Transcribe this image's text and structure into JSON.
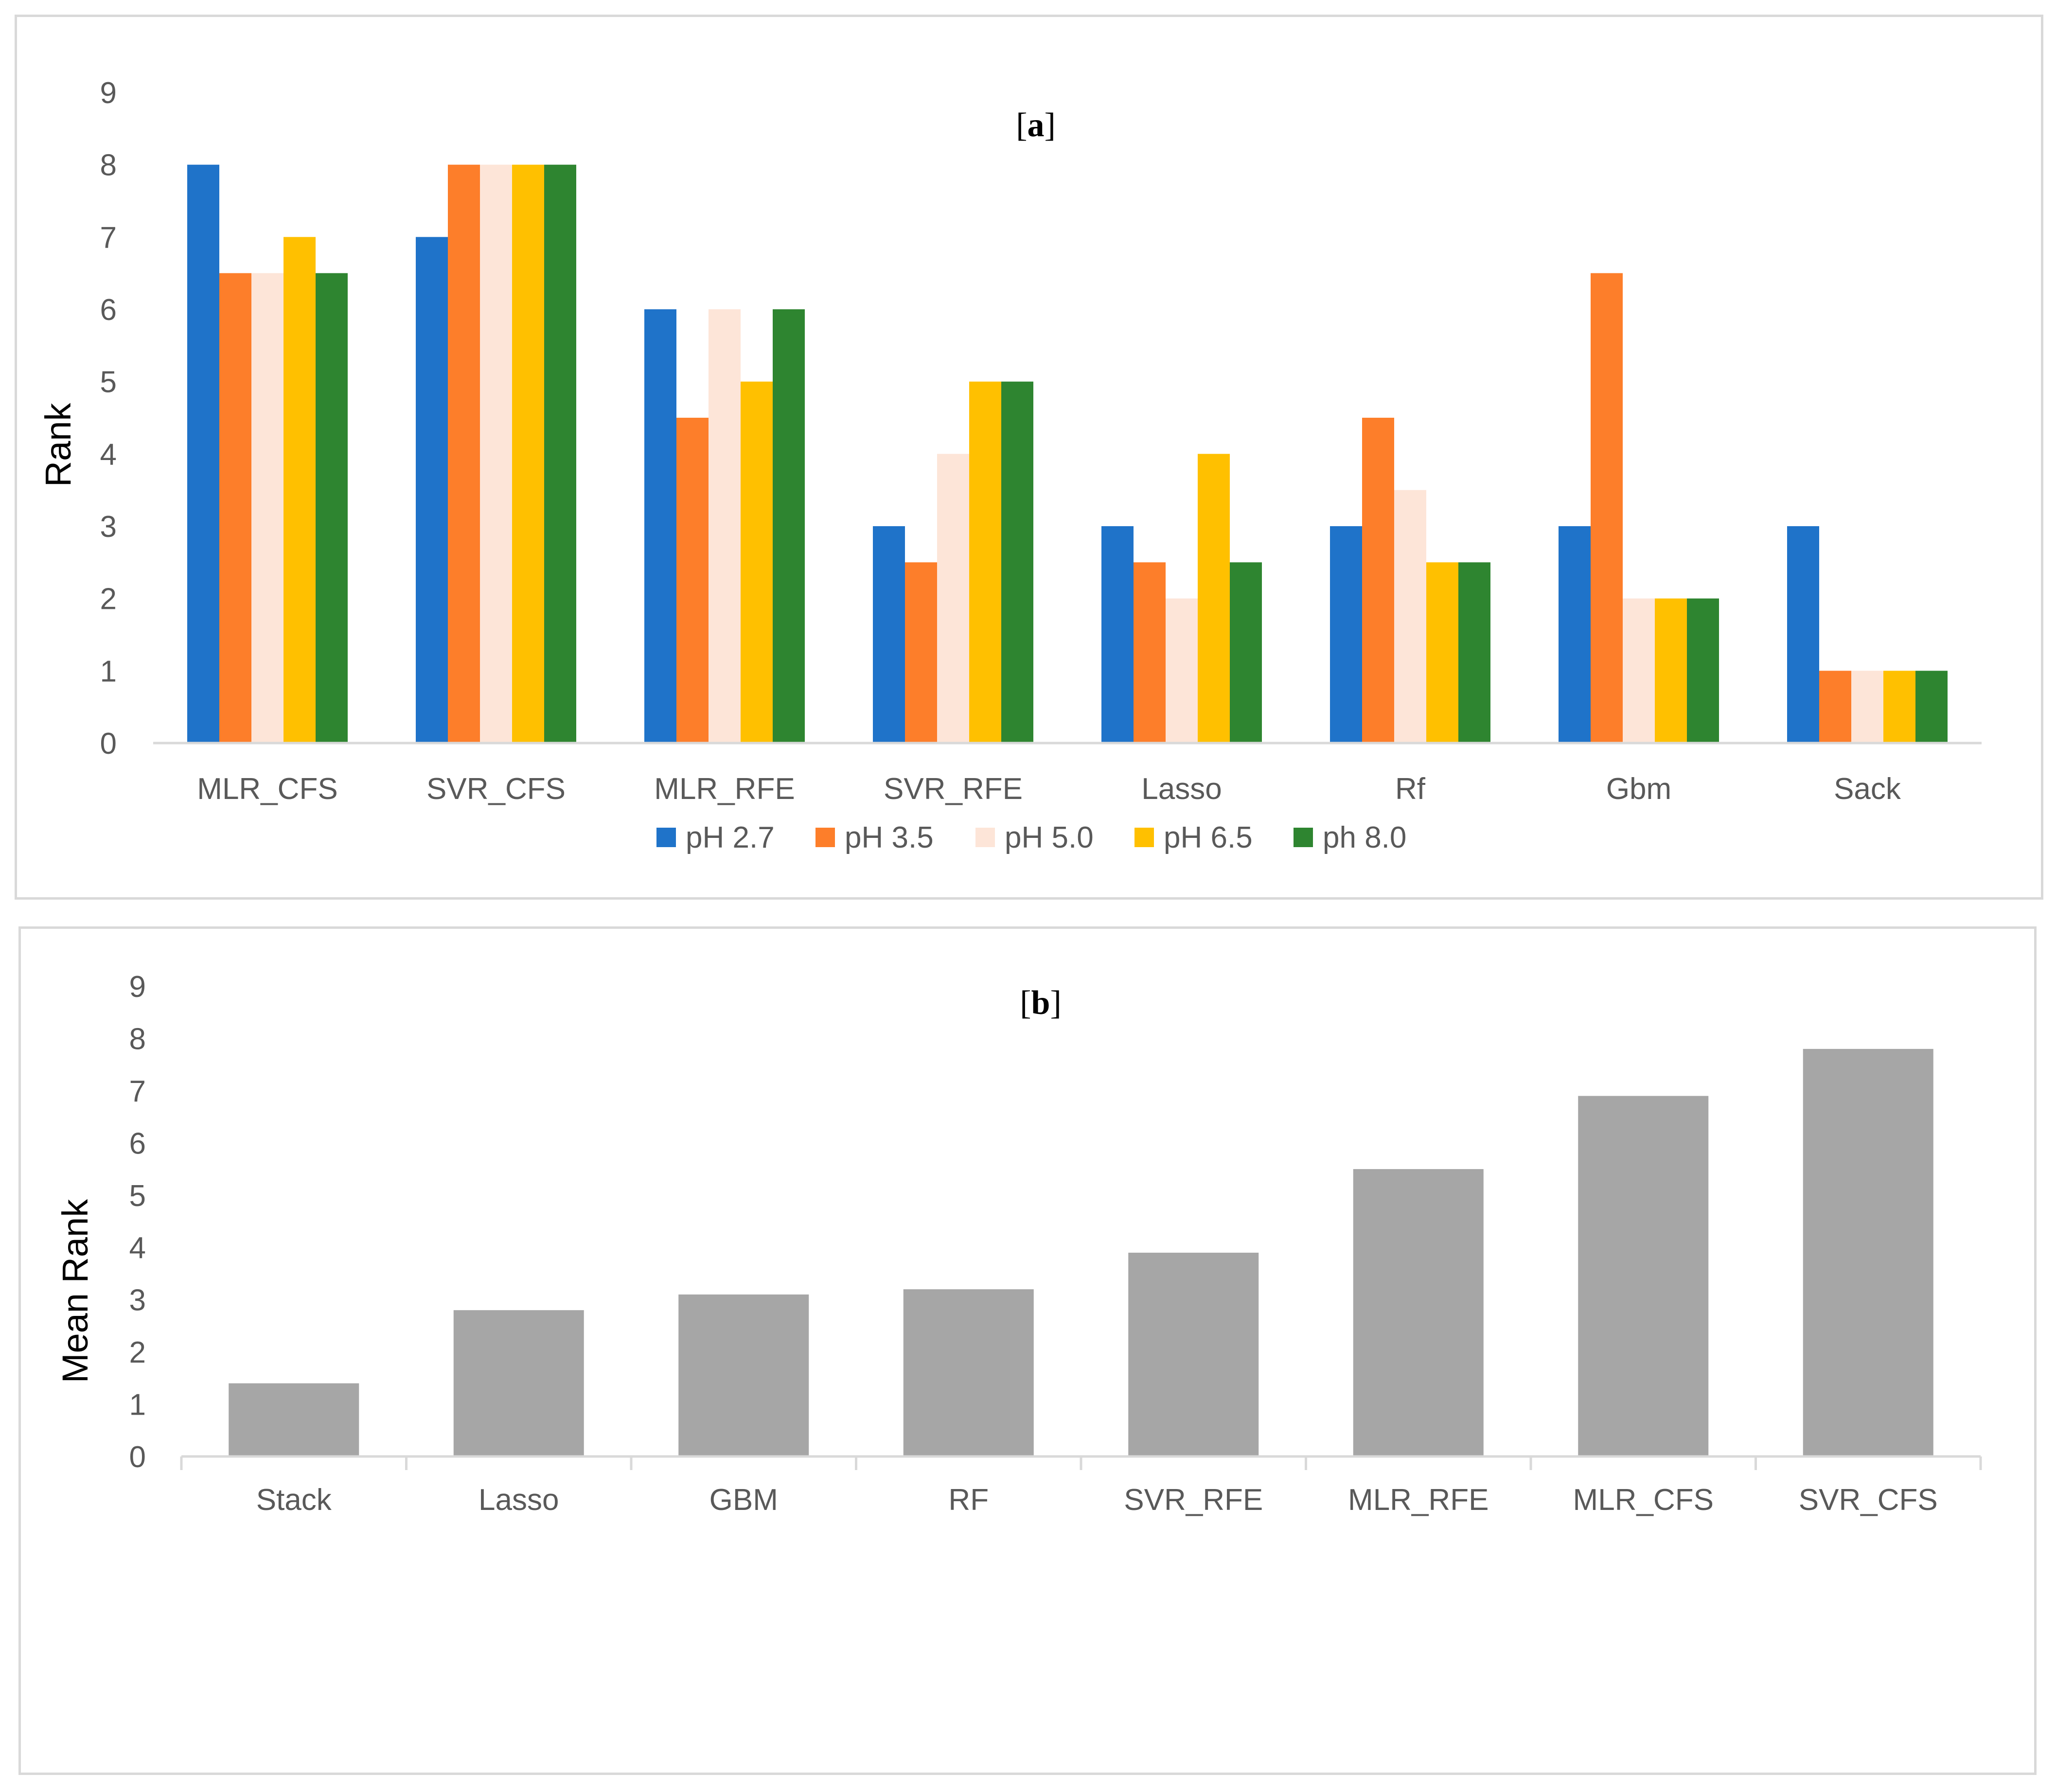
{
  "chart_data": [
    {
      "type": "bar",
      "title_open": "[",
      "title": "a",
      "title_close": "]",
      "xlabel": "",
      "ylabel": "Rank",
      "ylim": [
        0,
        9
      ],
      "yticks": [
        0,
        1,
        2,
        3,
        4,
        5,
        6,
        7,
        8,
        9
      ],
      "grid": false,
      "legend_position": "bottom",
      "categories": [
        "MLR_CFS",
        "SVR_CFS",
        "MLR_RFE",
        "SVR_RFE",
        "Lasso",
        "Rf",
        "Gbm",
        "Sack"
      ],
      "series": [
        {
          "name": "pH 2.7",
          "color": "#1f73c9",
          "values": [
            8,
            7,
            6,
            3,
            3,
            3,
            3,
            3
          ]
        },
        {
          "name": "pH 3.5",
          "color": "#fd7e2a",
          "values": [
            6.5,
            8,
            4.5,
            2.5,
            2.5,
            4.5,
            6.5,
            1
          ]
        },
        {
          "name": "pH 5.0",
          "color": "#fde5d8",
          "values": [
            6.5,
            8,
            6,
            4,
            2,
            3.5,
            2,
            1
          ]
        },
        {
          "name": "pH 6.5",
          "color": "#ffc000",
          "values": [
            7,
            8,
            5,
            5,
            4,
            2.5,
            2,
            1
          ]
        },
        {
          "name": "ph 8.0",
          "color": "#2e8530",
          "values": [
            6.5,
            8,
            6,
            5,
            2.5,
            2.5,
            2,
            1
          ]
        }
      ]
    },
    {
      "type": "bar",
      "title_open": "[",
      "title": "b",
      "title_close": "]",
      "xlabel": "",
      "ylabel": "Mean Rank",
      "ylim": [
        0,
        9
      ],
      "yticks": [
        0,
        1,
        2,
        3,
        4,
        5,
        6,
        7,
        8,
        9
      ],
      "grid": false,
      "categories": [
        "Stack",
        "Lasso",
        "GBM",
        "RF",
        "SVR_RFE",
        "MLR_RFE",
        "MLR_CFS",
        "SVR_CFS"
      ],
      "values": [
        1.4,
        2.8,
        3.1,
        3.2,
        3.9,
        5.5,
        6.9,
        7.8
      ],
      "color": "#a6a6a6"
    }
  ]
}
